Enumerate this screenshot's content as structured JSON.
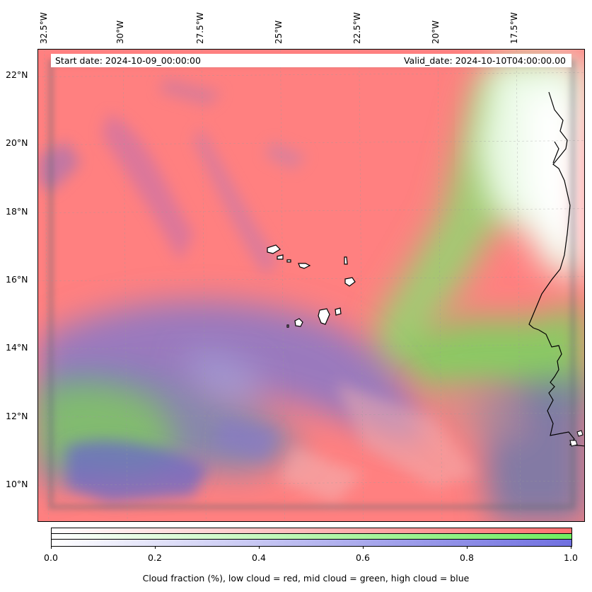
{
  "header": {
    "start_date": "Start date: 2024-10-09_00:00:00",
    "valid_date": "Valid_date: 2024-10-10T04:00:00.00"
  },
  "longitude_labels": [
    "32.5°W",
    "30°W",
    "27.5°W",
    "25°W",
    "22.5°W",
    "20°W",
    "17.5°W"
  ],
  "latitude_labels": [
    "22°N",
    "20°N",
    "18°N",
    "16°N",
    "14°N",
    "12°N",
    "10°N"
  ],
  "map": {
    "extent_lon": [
      -32.7,
      -15.3
    ],
    "extent_lat": [
      8.9,
      22.8
    ],
    "colors": {
      "low_cloud": "#ff8080",
      "mid_cloud": "#80e860",
      "high_cloud": "#8080e0",
      "land_border": "#000000"
    }
  },
  "colorbar": {
    "ticks": [
      "0.0",
      "0.2",
      "0.4",
      "0.6",
      "0.8",
      "1.0"
    ],
    "caption": "Cloud fraction (%), low cloud = red, mid cloud = green, high cloud = blue"
  }
}
